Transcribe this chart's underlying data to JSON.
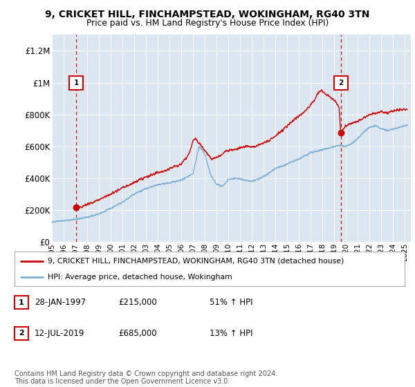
{
  "title1": "9, CRICKET HILL, FINCHAMPSTEAD, WOKINGHAM, RG40 3TN",
  "title2": "Price paid vs. HM Land Registry's House Price Index (HPI)",
  "ylabel_ticks": [
    "£0",
    "£200K",
    "£400K",
    "£600K",
    "£800K",
    "£1M",
    "£1.2M"
  ],
  "ytick_values": [
    0,
    200000,
    400000,
    600000,
    800000,
    1000000,
    1200000
  ],
  "ylim": [
    0,
    1300000
  ],
  "xlim_start": 1995.0,
  "xlim_end": 2025.5,
  "sale1_x": 1997.08,
  "sale1_y": 215000,
  "sale1_label": "1",
  "sale1_marker_y": 1000000,
  "sale2_x": 2019.54,
  "sale2_y": 685000,
  "sale2_label": "2",
  "sale2_marker_y": 1000000,
  "red_line_color": "#cc0000",
  "blue_line_color": "#7bafd4",
  "plot_bg_color": "#dce6f1",
  "grid_color": "#ffffff",
  "dashed_line_color": "#cc0000",
  "legend_label_red": "9, CRICKET HILL, FINCHAMPSTEAD, WOKINGHAM, RG40 3TN (detached house)",
  "legend_label_blue": "HPI: Average price, detached house, Wokingham",
  "annotation1_date": "28-JAN-1997",
  "annotation1_price": "£215,000",
  "annotation1_hpi": "51% ↑ HPI",
  "annotation2_date": "12-JUL-2019",
  "annotation2_price": "£685,000",
  "annotation2_hpi": "13% ↑ HPI",
  "footer": "Contains HM Land Registry data © Crown copyright and database right 2024.\nThis data is licensed under the Open Government Licence v3.0.",
  "xtick_years": [
    1995,
    1996,
    1997,
    1998,
    1999,
    2000,
    2001,
    2002,
    2003,
    2004,
    2005,
    2006,
    2007,
    2008,
    2009,
    2010,
    2011,
    2012,
    2013,
    2014,
    2015,
    2016,
    2017,
    2018,
    2019,
    2020,
    2021,
    2022,
    2023,
    2024,
    2025
  ]
}
